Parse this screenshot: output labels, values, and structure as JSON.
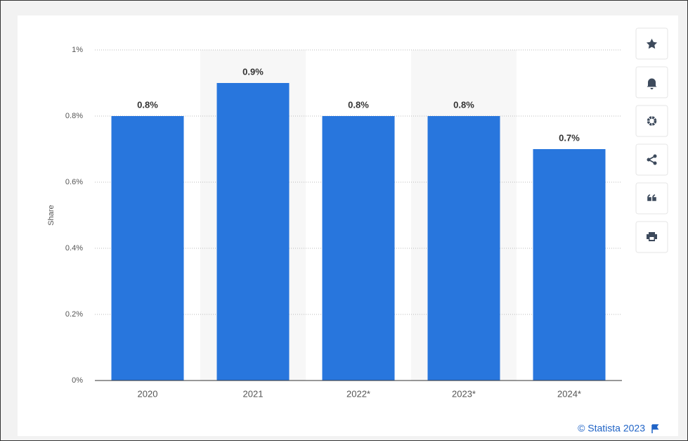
{
  "chart_data": {
    "type": "bar",
    "y_label": "Share",
    "categories": [
      "2020",
      "2021",
      "2022*",
      "2023*",
      "2024*"
    ],
    "values": [
      0.8,
      0.9,
      0.8,
      0.8,
      0.7
    ],
    "value_labels": [
      "0.8%",
      "0.9%",
      "0.8%",
      "0.8%",
      "0.7%"
    ],
    "color": "#2876dd",
    "ylim": [
      0,
      1
    ],
    "yticks": [
      {
        "value": 0,
        "label": "0%"
      },
      {
        "value": 0.2,
        "label": "0.2%"
      },
      {
        "value": 0.4,
        "label": "0.4%"
      },
      {
        "value": 0.6,
        "label": "0.6%"
      },
      {
        "value": 0.8,
        "label": "0.8%"
      },
      {
        "value": 1,
        "label": "1%"
      }
    ],
    "grid": true,
    "source": "© Statista 2023"
  }
}
